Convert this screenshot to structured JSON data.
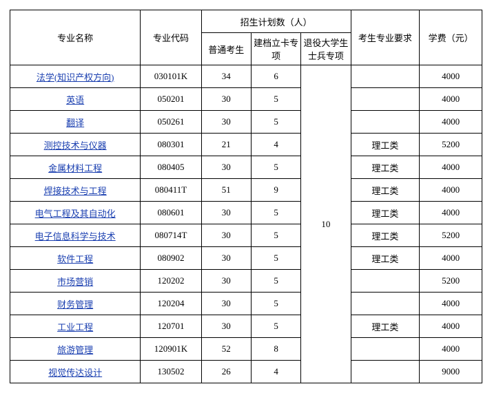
{
  "headers": {
    "major": "专业名称",
    "code": "专业代码",
    "plan_group": "招生计划数（人）",
    "plan_normal": "普通考生",
    "plan_poverty": "建档立卡专项",
    "plan_veteran": "退役大学生士兵专项",
    "requirement": "考生专业要求",
    "fee": "学费（元）"
  },
  "veteran_shared": "10",
  "rows": [
    {
      "major": "法学(知识产权方向)",
      "code": "030101K",
      "normal": "34",
      "poverty": "6",
      "req": "",
      "fee": "4000"
    },
    {
      "major": "英语",
      "code": "050201",
      "normal": "30",
      "poverty": "5",
      "req": "",
      "fee": "4000"
    },
    {
      "major": "翻译",
      "code": "050261",
      "normal": "30",
      "poverty": "5",
      "req": "",
      "fee": "4000"
    },
    {
      "major": "测控技术与仪器",
      "code": "080301",
      "normal": "21",
      "poverty": "4",
      "req": "理工类",
      "fee": "5200"
    },
    {
      "major": "金属材料工程",
      "code": "080405",
      "normal": "30",
      "poverty": "5",
      "req": "理工类",
      "fee": "4000"
    },
    {
      "major": "焊接技术与工程",
      "code": "080411T",
      "normal": "51",
      "poverty": "9",
      "req": "理工类",
      "fee": "4000"
    },
    {
      "major": "电气工程及其自动化",
      "code": "080601",
      "normal": "30",
      "poverty": "5",
      "req": "理工类",
      "fee": "4000"
    },
    {
      "major": "电子信息科学与技术",
      "code": "080714T",
      "normal": "30",
      "poverty": "5",
      "req": "理工类",
      "fee": "5200"
    },
    {
      "major": "软件工程",
      "code": "080902",
      "normal": "30",
      "poverty": "5",
      "req": "理工类",
      "fee": "4000"
    },
    {
      "major": "市场营销",
      "code": "120202",
      "normal": "30",
      "poverty": "5",
      "req": "",
      "fee": "5200"
    },
    {
      "major": "财务管理",
      "code": "120204",
      "normal": "30",
      "poverty": "5",
      "req": "",
      "fee": "4000"
    },
    {
      "major": "工业工程",
      "code": "120701",
      "normal": "30",
      "poverty": "5",
      "req": "理工类",
      "fee": "4000"
    },
    {
      "major": "旅游管理",
      "code": "120901K",
      "normal": "52",
      "poverty": "8",
      "req": "",
      "fee": "4000"
    },
    {
      "major": "视觉传达设计",
      "code": "130502",
      "normal": "26",
      "poverty": "4",
      "req": "",
      "fee": "9000"
    }
  ]
}
